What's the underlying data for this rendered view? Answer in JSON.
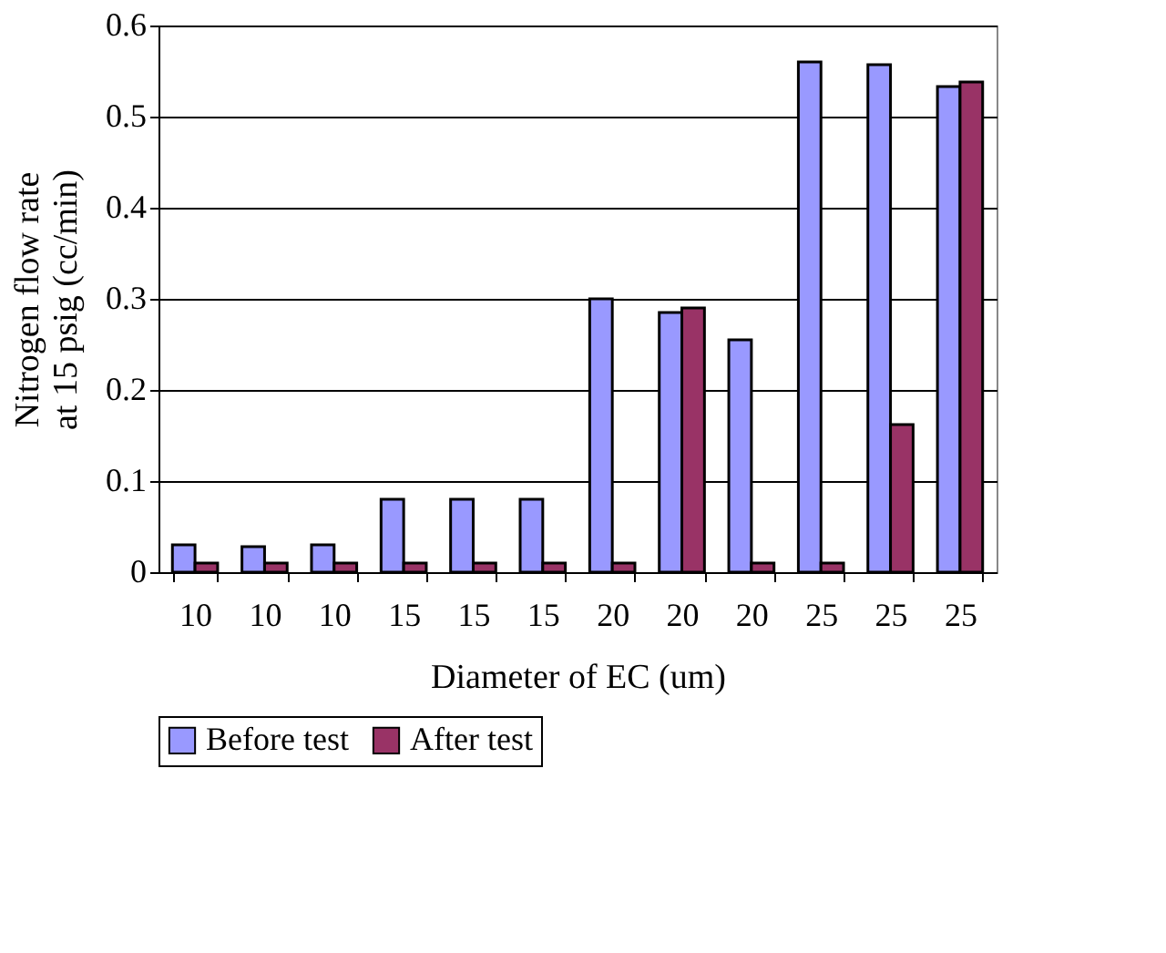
{
  "chart_data": {
    "type": "bar",
    "xlabel": "Diameter of EC (um)",
    "ylabel": "Nitrogen flow rate at 15 psig (cc/min)",
    "categories": [
      "10",
      "10",
      "10",
      "15",
      "15",
      "15",
      "20",
      "20",
      "20",
      "25",
      "25",
      "25"
    ],
    "series": [
      {
        "name": "Before test",
        "color": "#9999ff",
        "values": [
          0.03,
          0.028,
          0.03,
          0.08,
          0.08,
          0.08,
          0.3,
          0.285,
          0.255,
          0.56,
          0.557,
          0.533
        ]
      },
      {
        "name": "After test",
        "color": "#993366",
        "values": [
          0.01,
          0.01,
          0.01,
          0.01,
          0.01,
          0.01,
          0.01,
          0.29,
          0.01,
          0.01,
          0.162,
          0.538
        ]
      }
    ],
    "ylim": [
      0,
      0.6
    ],
    "yticks": [
      0,
      0.1,
      0.2,
      0.3,
      0.4,
      0.5,
      0.6
    ],
    "grid": "y",
    "legend": "bottom"
  }
}
